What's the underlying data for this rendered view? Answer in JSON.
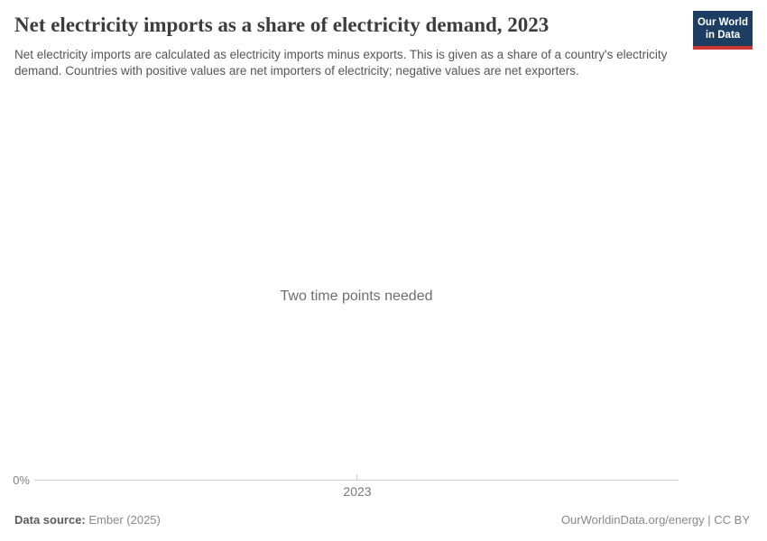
{
  "header": {
    "title": "Net electricity imports as a share of electricity demand, 2023",
    "subtitle": "Net electricity imports are calculated as electricity imports minus exports. This is given as a share of a country's electricity demand. Countries with positive values are net importers of electricity; negative values are net exporters."
  },
  "logo": {
    "line1": "Our World",
    "line2": "in Data",
    "bg_color": "#1d3d63",
    "stripe_color": "#cd3731"
  },
  "chart_data": {
    "type": "line",
    "title": "Net electricity imports as a share of electricity demand, 2023",
    "message": "Two time points needed",
    "series": [],
    "x": [
      2023
    ],
    "x_tick_labels": [
      "2023"
    ],
    "y_tick_labels": [
      "0%"
    ],
    "grid": false,
    "legend": "none",
    "axis_line_color": "#cccccc"
  },
  "footer": {
    "source_label": "Data source:",
    "source_value": "Ember (2025)",
    "attribution": "OurWorldinData.org/energy | CC BY"
  }
}
